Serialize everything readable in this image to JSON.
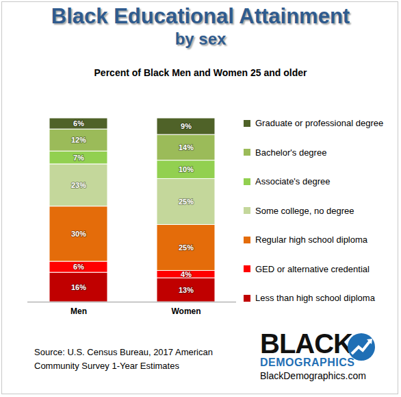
{
  "chart_data": {
    "type": "bar",
    "title": "Black Educational Attainment\nby sex",
    "subtitle": "Percent of Black Men and Women 25 and older",
    "source": "Source: U.S. Census Bureau, 2017 American Community Survey 1-Year Estimates",
    "annotations": [
      "BLACK",
      "DEMOGRAPHICS",
      "BlackDemographics.com"
    ],
    "categories": [
      "Men",
      "Women"
    ],
    "stacked": true,
    "data_labels": true,
    "tick_labels": "x",
    "legend": "right",
    "ylim": [
      0,
      100
    ],
    "series": [
      {
        "name": "Less than high school diploma",
        "color": "#c00000",
        "values": [
          16,
          13
        ],
        "value_labels": [
          "16%",
          "13%"
        ]
      },
      {
        "name": "GED or alternative credential",
        "color": "#ff0000",
        "values": [
          6,
          4
        ],
        "value_labels": [
          "6%",
          "4%"
        ]
      },
      {
        "name": "Regular high school diploma",
        "color": "#e46c0a",
        "values": [
          30,
          25
        ],
        "value_labels": [
          "30%",
          "25%"
        ]
      },
      {
        "name": "Some college, no degree",
        "color": "#c4d79b",
        "values": [
          23,
          25
        ],
        "value_labels": [
          "23%",
          "25%"
        ]
      },
      {
        "name": "Associate's degree",
        "color": "#92d050",
        "values": [
          7,
          10
        ],
        "value_labels": [
          "7%",
          "10%"
        ]
      },
      {
        "name": "Bachelor's degree",
        "color": "#9bbb59",
        "values": [
          12,
          14
        ],
        "value_labels": [
          "12%",
          "14%"
        ]
      },
      {
        "name": "Graduate or professional degree",
        "color": "#4f6228",
        "values": [
          6,
          9
        ],
        "value_labels": [
          "6%",
          "9%"
        ]
      }
    ]
  }
}
